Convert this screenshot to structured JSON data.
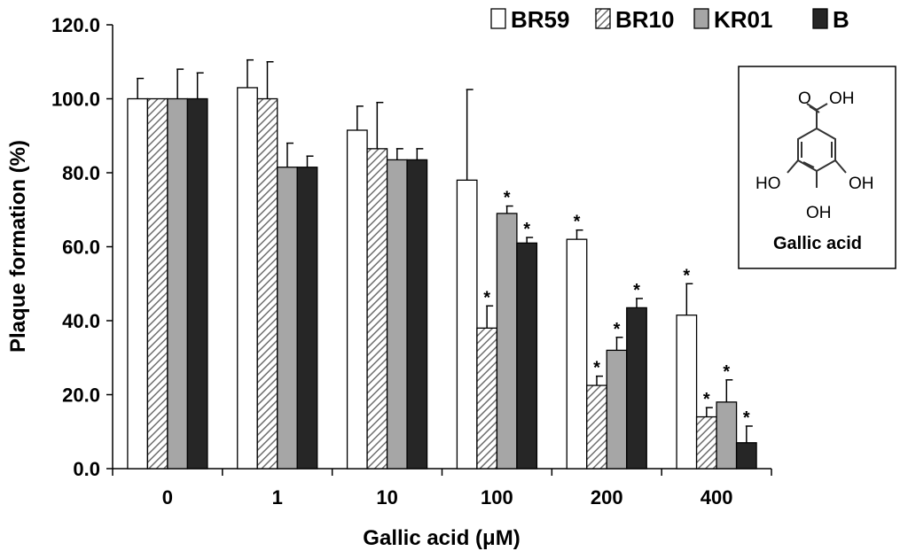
{
  "chart_data": {
    "type": "bar",
    "xlabel": "Gallic acid (μM)",
    "ylabel": "Plaque formation (%)",
    "ylim": [
      0,
      120
    ],
    "yticks": [
      "0.0",
      "20.0",
      "40.0",
      "60.0",
      "80.0",
      "100.0",
      "120.0"
    ],
    "categories": [
      "0",
      "1",
      "10",
      "100",
      "200",
      "400"
    ],
    "legend_position": "top-right",
    "series": [
      {
        "name": "BR59",
        "fill": "white",
        "values": [
          100,
          103,
          91.5,
          78,
          62,
          41.5
        ],
        "errors": [
          5.5,
          7.5,
          6.5,
          24.5,
          2.5,
          8.5
        ],
        "significant": [
          false,
          false,
          false,
          false,
          true,
          true
        ]
      },
      {
        "name": "BR10",
        "fill": "hatched",
        "values": [
          100,
          100,
          86.5,
          38,
          22.5,
          14
        ],
        "errors": [
          0,
          10,
          12.5,
          6,
          2.5,
          2.5
        ],
        "significant": [
          false,
          false,
          false,
          true,
          true,
          true
        ]
      },
      {
        "name": "KR01",
        "fill": "gray",
        "values": [
          100,
          81.5,
          83.5,
          69,
          32,
          18
        ],
        "errors": [
          8,
          6.5,
          3,
          2,
          3.5,
          6
        ],
        "significant": [
          false,
          false,
          false,
          true,
          true,
          true
        ]
      },
      {
        "name": "B",
        "fill": "black",
        "values": [
          100,
          81.5,
          83.5,
          61,
          43.5,
          7
        ],
        "errors": [
          7,
          3,
          3,
          1.5,
          2.5,
          4.5
        ],
        "significant": [
          false,
          false,
          false,
          true,
          true,
          true
        ]
      }
    ],
    "significance_marker": "*",
    "colors": {
      "BR59": "#ffffff",
      "BR10": "#c8c8c8",
      "KR01": "#a6a6a6",
      "B": "#262626"
    }
  },
  "inset": {
    "title": "Gallic acid",
    "labels": {
      "carbonyl_o": "O",
      "hydroxyl_top": "OH",
      "ho_left": "HO",
      "oh_right": "OH",
      "oh_bottom": "OH"
    }
  }
}
